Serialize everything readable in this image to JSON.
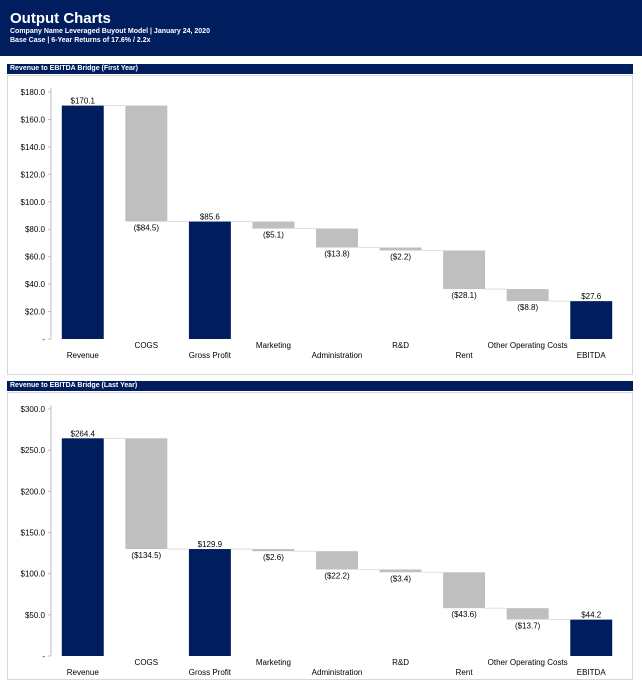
{
  "header": {
    "title": "Output Charts",
    "subtitle1": "Company Name Leveraged Buyout Model | January 24, 2020",
    "subtitle2": "Base Case | 6-Year Returns of 17.6% / 2.2x"
  },
  "colors": {
    "navy": "#001e5e",
    "gray": "#bfbfbf"
  },
  "chart_data": [
    {
      "type": "bar",
      "subtype": "waterfall",
      "title": "Revenue to EBITDA Bridge (First Year)",
      "categories": [
        "Revenue",
        "COGS",
        "Gross Profit",
        "Marketing",
        "Administration",
        "R&D",
        "Rent",
        "Other Operating Costs",
        "EBITDA"
      ],
      "values": [
        170.1,
        -84.5,
        85.6,
        -5.1,
        -13.8,
        -2.2,
        -28.1,
        -8.8,
        27.6
      ],
      "value_labels": [
        "$170.1",
        "($84.5)",
        "$85.6",
        "($5.1)",
        "($13.8)",
        "($2.2)",
        "($28.1)",
        "($8.8)",
        "$27.6"
      ],
      "totals": [
        true,
        false,
        true,
        false,
        false,
        false,
        false,
        false,
        true
      ],
      "ylim": [
        0,
        180
      ],
      "yticks": [
        0,
        20,
        40,
        60,
        80,
        100,
        120,
        140,
        160,
        180
      ],
      "ytick_labels": [
        "-",
        "$20.0",
        "$40.0",
        "$60.0",
        "$80.0",
        "$100.0",
        "$120.0",
        "$140.0",
        "$160.0",
        "$180.0"
      ],
      "grid": false,
      "legend": "none"
    },
    {
      "type": "bar",
      "subtype": "waterfall",
      "title": "Revenue to EBITDA Bridge (Last Year)",
      "categories": [
        "Revenue",
        "COGS",
        "Gross Profit",
        "Marketing",
        "Administration",
        "R&D",
        "Rent",
        "Other Operating Costs",
        "EBITDA"
      ],
      "values": [
        264.4,
        -134.5,
        129.9,
        -2.6,
        -22.2,
        -3.4,
        -43.6,
        -13.7,
        44.2
      ],
      "value_labels": [
        "$264.4",
        "($134.5)",
        "$129.9",
        "($2.6)",
        "($22.2)",
        "($3.4)",
        "($43.6)",
        "($13.7)",
        "$44.2"
      ],
      "totals": [
        true,
        false,
        true,
        false,
        false,
        false,
        false,
        false,
        true
      ],
      "ylim": [
        0,
        300
      ],
      "yticks": [
        0,
        50,
        100,
        150,
        200,
        250,
        300
      ],
      "ytick_labels": [
        "-",
        "$50.0",
        "$100.0",
        "$150.0",
        "$200.0",
        "$250.0",
        "$300.0"
      ],
      "grid": false,
      "legend": "none"
    }
  ]
}
